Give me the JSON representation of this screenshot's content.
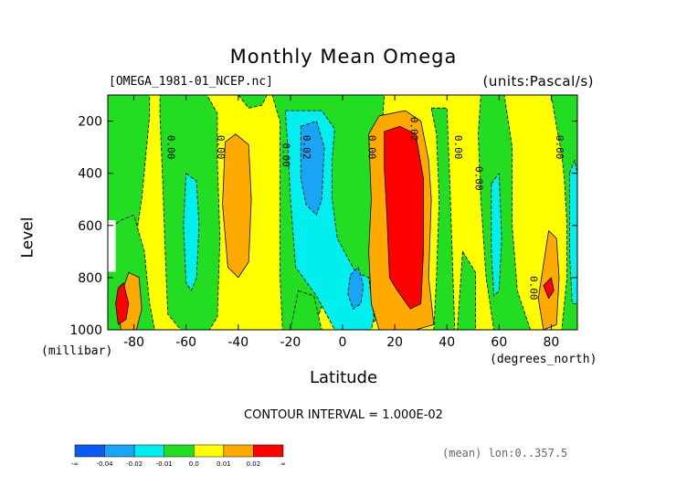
{
  "title": "Monthly Mean Omega",
  "dataset": "[OMEGA_1981-01_NCEP.nc]",
  "units": "(units:Pascal/s)",
  "contour_interval": "CONTOUR INTERVAL = 1.000E-02",
  "stat": "(mean) lon:0..357.5",
  "colors": {
    "lt_m04": "#0c5bf0",
    "m04_m02": "#1aa4f6",
    "m02_m01": "#00eeee",
    "m01_0": "#22dd22",
    "0_01": "#ffff00",
    "01_02": "#ffaa00",
    "gt_02": "#ff0000",
    "line": "#000000"
  },
  "chart_data": {
    "type": "heatmap",
    "title": "Monthly Mean Omega",
    "xlabel": "Latitude",
    "ylabel": "Level",
    "x_units": "(degrees_north)",
    "y_units": "(millibar)",
    "xlim": [
      -90,
      90
    ],
    "ylim": [
      1000,
      100
    ],
    "xticks": [
      "-80",
      "-60",
      "-40",
      "-20",
      "0",
      "20",
      "40",
      "60",
      "80"
    ],
    "xtick_values": [
      -80,
      -60,
      -40,
      -20,
      0,
      20,
      40,
      60,
      80
    ],
    "yticks": [
      "200",
      "400",
      "600",
      "800",
      "1000"
    ],
    "ytick_values": [
      200,
      400,
      600,
      800,
      1000
    ],
    "levels": [
      -0.04,
      -0.02,
      -0.01,
      0.0,
      0.01,
      0.02
    ],
    "colorbar_labels": [
      "-∞",
      "-0.04",
      "-0.02",
      "-0.01",
      "0.0",
      "0.01",
      "0.02",
      "∞"
    ],
    "contour_labels": [
      {
        "text": "0.00",
        "x": -67,
        "y": 300
      },
      {
        "text": "0.00",
        "x": -48,
        "y": 300
      },
      {
        "text": "0.00",
        "x": -23,
        "y": 330
      },
      {
        "text": "0.02",
        "x": -15,
        "y": 300
      },
      {
        "text": "0.00",
        "x": 10,
        "y": 300
      },
      {
        "text": "0.02",
        "x": 26,
        "y": 230
      },
      {
        "text": "0.00",
        "x": 43,
        "y": 300
      },
      {
        "text": "0.00",
        "x": 51,
        "y": 420
      },
      {
        "text": "0.00",
        "x": 72,
        "y": 840
      },
      {
        "text": "0.00",
        "x": 82,
        "y": 300
      }
    ],
    "regions": [
      {
        "level": "0_01",
        "poly": [
          [
            -90,
            100
          ],
          [
            90,
            100
          ],
          [
            90,
            1000
          ],
          [
            -90,
            1000
          ]
        ]
      },
      {
        "level": "m01_0",
        "poly": [
          [
            -90,
            100
          ],
          [
            -74,
            100
          ],
          [
            -74,
            180
          ],
          [
            -77,
            500
          ],
          [
            -80,
            700
          ],
          [
            -85,
            800
          ],
          [
            -90,
            800
          ]
        ]
      },
      {
        "level": "m01_0",
        "poly": [
          [
            -70,
            100
          ],
          [
            -52,
            100
          ],
          [
            -48,
            170
          ],
          [
            -48,
            350
          ],
          [
            -47,
            650
          ],
          [
            -48,
            950
          ],
          [
            -51,
            1000
          ],
          [
            -62,
            1000
          ],
          [
            -67,
            940
          ],
          [
            -68,
            700
          ],
          [
            -69,
            420
          ],
          [
            -70,
            180
          ]
        ]
      },
      {
        "level": "m01_0",
        "poly": [
          [
            -40,
            100
          ],
          [
            -27,
            100
          ],
          [
            -24,
            200
          ],
          [
            -24,
            500
          ],
          [
            -24,
            800
          ],
          [
            -23,
            1000
          ],
          [
            -11,
            1000
          ],
          [
            -5,
            820
          ],
          [
            0,
            820
          ],
          [
            5,
            950
          ],
          [
            8,
            1000
          ],
          [
            13,
            960
          ],
          [
            14,
            700
          ],
          [
            16,
            600
          ],
          [
            16,
            400
          ],
          [
            15,
            250
          ],
          [
            16,
            100
          ]
        ]
      },
      {
        "level": "m01_0",
        "poly": [
          [
            -40,
            100
          ],
          [
            -36,
            150
          ],
          [
            -31,
            140
          ],
          [
            -29,
            100
          ]
        ]
      },
      {
        "level": "m01_0",
        "poly": [
          [
            34,
            150
          ],
          [
            40,
            150
          ],
          [
            41,
            400
          ],
          [
            42,
            700
          ],
          [
            43,
            1000
          ],
          [
            35,
            1000
          ],
          [
            36,
            800
          ],
          [
            37,
            500
          ],
          [
            36,
            250
          ]
        ]
      },
      {
        "level": "m01_0",
        "poly": [
          [
            53,
            100
          ],
          [
            62,
            100
          ],
          [
            65,
            300
          ],
          [
            65,
            600
          ],
          [
            67,
            850
          ],
          [
            72,
            1000
          ],
          [
            58,
            1000
          ],
          [
            55,
            800
          ],
          [
            53,
            500
          ],
          [
            52,
            250
          ]
        ]
      },
      {
        "level": "m01_0",
        "poly": [
          [
            80,
            100
          ],
          [
            90,
            100
          ],
          [
            90,
            1000
          ],
          [
            84,
            1000
          ],
          [
            86,
            800
          ],
          [
            86,
            600
          ],
          [
            85,
            420
          ],
          [
            84,
            330
          ],
          [
            82,
            220
          ]
        ]
      },
      {
        "level": "m01_0",
        "poly": [
          [
            -90,
            620
          ],
          [
            -85,
            580
          ],
          [
            -80,
            560
          ],
          [
            -76,
            700
          ],
          [
            -74,
            900
          ],
          [
            -72,
            1000
          ],
          [
            -90,
            1000
          ]
        ]
      },
      {
        "level": "m01_0",
        "poly": [
          [
            -17,
            850
          ],
          [
            -11,
            870
          ],
          [
            -8,
            1000
          ],
          [
            -20,
            1000
          ]
        ]
      },
      {
        "level": "m01_0",
        "poly": [
          [
            46,
            700
          ],
          [
            51,
            780
          ],
          [
            51,
            1000
          ],
          [
            44,
            1000
          ]
        ]
      },
      {
        "level": "m02_m01",
        "poly": [
          [
            -60,
            400
          ],
          [
            -56,
            430
          ],
          [
            -55,
            600
          ],
          [
            -56,
            800
          ],
          [
            -58,
            850
          ],
          [
            -60,
            820
          ],
          [
            -61,
            600
          ]
        ]
      },
      {
        "level": "m02_m01",
        "poly": [
          [
            -22,
            160
          ],
          [
            -8,
            160
          ],
          [
            -3,
            230
          ],
          [
            -4,
            350
          ],
          [
            -4,
            500
          ],
          [
            -2,
            650
          ],
          [
            5,
            780
          ],
          [
            10,
            800
          ],
          [
            12,
            950
          ],
          [
            11,
            1000
          ],
          [
            -3,
            1000
          ],
          [
            -10,
            870
          ],
          [
            -18,
            760
          ],
          [
            -20,
            500
          ],
          [
            -21,
            300
          ]
        ]
      },
      {
        "level": "m02_m01",
        "poly": [
          [
            57,
            440
          ],
          [
            60,
            400
          ],
          [
            61,
            650
          ],
          [
            60,
            850
          ],
          [
            58,
            870
          ],
          [
            57,
            700
          ]
        ]
      },
      {
        "level": "m02_m01",
        "poly": [
          [
            87,
            400
          ],
          [
            89,
            350
          ],
          [
            90,
            400
          ],
          [
            90,
            900
          ],
          [
            88,
            900
          ],
          [
            87,
            700
          ]
        ]
      },
      {
        "level": "m04_m02",
        "poly": [
          [
            -16,
            220
          ],
          [
            -10,
            200
          ],
          [
            -7,
            300
          ],
          [
            -8,
            500
          ],
          [
            -10,
            560
          ],
          [
            -14,
            520
          ],
          [
            -16,
            420
          ]
        ]
      },
      {
        "level": "m04_m02",
        "poly": [
          [
            3,
            790
          ],
          [
            6,
            760
          ],
          [
            8,
            830
          ],
          [
            7,
            900
          ],
          [
            4,
            920
          ],
          [
            2,
            860
          ]
        ]
      },
      {
        "level": "01_02",
        "poly": [
          [
            -45,
            280
          ],
          [
            -41,
            250
          ],
          [
            -36,
            290
          ],
          [
            -35,
            500
          ],
          [
            -36,
            740
          ],
          [
            -40,
            800
          ],
          [
            -44,
            760
          ],
          [
            -46,
            520
          ]
        ]
      },
      {
        "level": "01_02",
        "poly": [
          [
            10,
            250
          ],
          [
            14,
            180
          ],
          [
            24,
            160
          ],
          [
            30,
            200
          ],
          [
            33,
            350
          ],
          [
            34,
            500
          ],
          [
            33,
            800
          ],
          [
            35,
            980
          ],
          [
            28,
            1000
          ],
          [
            14,
            1000
          ],
          [
            11,
            900
          ],
          [
            10,
            700
          ],
          [
            11,
            500
          ]
        ]
      },
      {
        "level": "01_02",
        "poly": [
          [
            -82,
            780
          ],
          [
            -78,
            800
          ],
          [
            -77,
            920
          ],
          [
            -79,
            1000
          ],
          [
            -85,
            1000
          ],
          [
            -86,
            900
          ]
        ]
      },
      {
        "level": "01_02",
        "poly": [
          [
            75,
            880
          ],
          [
            79,
            620
          ],
          [
            82,
            650
          ],
          [
            83,
            800
          ],
          [
            82,
            980
          ],
          [
            77,
            1000
          ]
        ]
      },
      {
        "level": "gt_02",
        "poly": [
          [
            16,
            240
          ],
          [
            22,
            220
          ],
          [
            28,
            250
          ],
          [
            31,
            420
          ],
          [
            31,
            700
          ],
          [
            30,
            900
          ],
          [
            26,
            920
          ],
          [
            21,
            850
          ],
          [
            18,
            800
          ],
          [
            17,
            560
          ],
          [
            16,
            380
          ]
        ]
      },
      {
        "level": "gt_02",
        "poly": [
          [
            -86,
            840
          ],
          [
            -84,
            820
          ],
          [
            -82,
            900
          ],
          [
            -83,
            960
          ],
          [
            -86,
            980
          ],
          [
            -87,
            900
          ]
        ]
      },
      {
        "level": "gt_02",
        "poly": [
          [
            77,
            830
          ],
          [
            80,
            800
          ],
          [
            81,
            850
          ],
          [
            79,
            880
          ]
        ]
      }
    ]
  }
}
